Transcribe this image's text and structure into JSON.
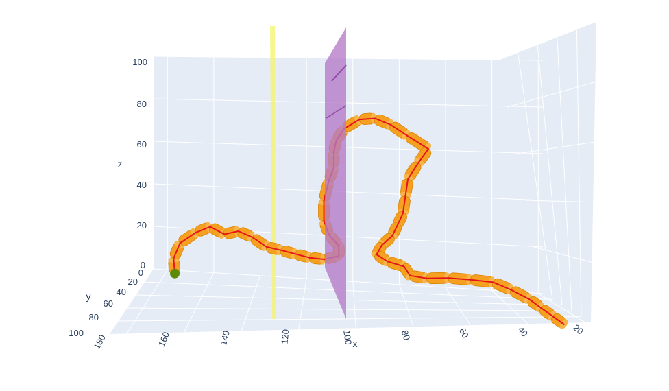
{
  "chart_data": {
    "type": "line3d",
    "axes": {
      "x": {
        "title": "x",
        "ticks": [
          "180",
          "160",
          "140",
          "120",
          "100",
          "80",
          "60",
          "40",
          "20"
        ],
        "range": [
          18,
          186
        ]
      },
      "y": {
        "title": "y",
        "ticks": [
          "0",
          "20",
          "40",
          "60",
          "80",
          "100"
        ],
        "range": [
          0,
          100
        ]
      },
      "z": {
        "title": "z",
        "ticks": [
          "0",
          "20",
          "40",
          "60",
          "80",
          "100"
        ],
        "range": [
          0,
          100
        ]
      }
    },
    "planes": [
      {
        "name": "",
        "orientation": "x",
        "at": 125,
        "color": "#f4f46a"
      },
      {
        "name": "",
        "orientation": "x",
        "at": 107,
        "color": "#b57ac6"
      }
    ],
    "start_marker": {
      "x": 176,
      "y": 5,
      "z": 0,
      "color": "#5b8a06"
    },
    "tube_color": "#f5a020",
    "line_color": "#e5141b",
    "trace": [
      [
        176,
        5,
        0
      ],
      [
        176,
        8,
        8
      ],
      [
        173,
        10,
        16
      ],
      [
        166,
        12,
        22
      ],
      [
        160,
        12,
        25
      ],
      [
        154,
        13,
        22
      ],
      [
        148,
        14,
        24
      ],
      [
        142,
        16,
        22
      ],
      [
        136,
        17,
        18
      ],
      [
        130,
        18,
        17
      ],
      [
        124,
        20,
        16
      ],
      [
        118,
        22,
        15
      ],
      [
        112,
        24,
        15
      ],
      [
        106,
        25,
        17
      ],
      [
        106,
        26,
        22
      ],
      [
        110,
        30,
        28
      ],
      [
        112,
        32,
        35
      ],
      [
        112,
        34,
        45
      ],
      [
        110,
        36,
        55
      ],
      [
        108,
        38,
        62
      ],
      [
        108,
        40,
        70
      ],
      [
        107,
        42,
        76
      ],
      [
        104,
        44,
        82
      ],
      [
        98,
        46,
        87
      ],
      [
        92,
        48,
        88
      ],
      [
        86,
        52,
        86
      ],
      [
        80,
        56,
        82
      ],
      [
        72,
        58,
        76
      ],
      [
        76,
        60,
        70
      ],
      [
        80,
        62,
        63
      ],
      [
        81,
        63,
        55
      ],
      [
        82,
        64,
        47
      ],
      [
        84,
        65,
        42
      ],
      [
        86,
        66,
        37
      ],
      [
        90,
        68,
        33
      ],
      [
        92,
        70,
        29
      ],
      [
        88,
        72,
        26
      ],
      [
        82,
        74,
        24
      ],
      [
        80,
        76,
        20
      ],
      [
        74,
        78,
        19
      ],
      [
        66,
        78,
        19
      ],
      [
        58,
        78,
        18
      ],
      [
        50,
        80,
        17
      ],
      [
        44,
        84,
        14
      ],
      [
        38,
        88,
        10
      ],
      [
        34,
        90,
        6
      ],
      [
        30,
        92,
        2
      ],
      [
        26,
        92,
        -2
      ]
    ]
  }
}
